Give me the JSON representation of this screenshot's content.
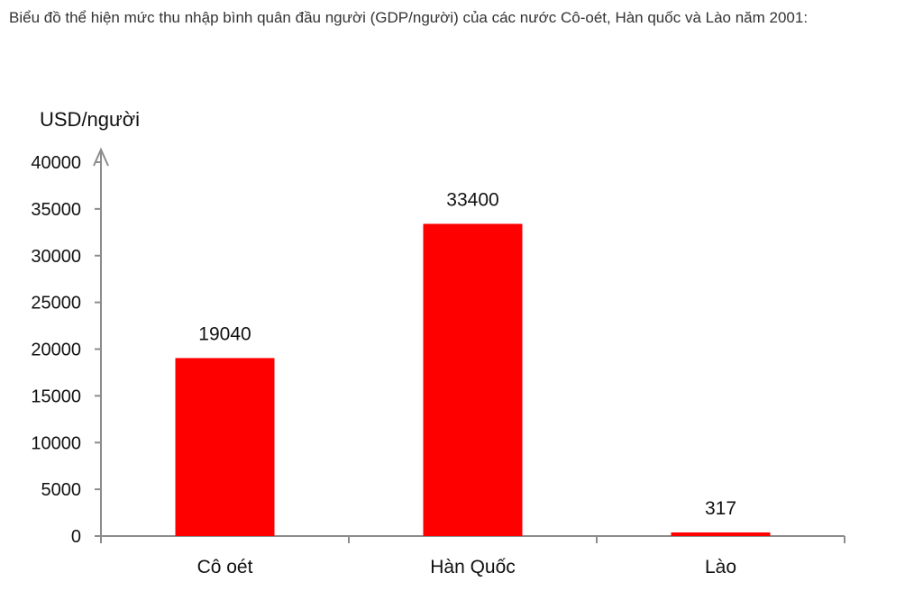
{
  "question": {
    "text": "Biểu đồ thể hiện mức thu nhập bình quân đầu người (GDP/người) của các nước Cô-oét, Hàn quốc và Lào năm 2001:"
  },
  "colors": {
    "bar": "#ff0000",
    "axis": "#8c8c8c",
    "text": "#111111"
  },
  "chart_data": {
    "type": "bar",
    "title": "",
    "xlabel": "",
    "ylabel": "USD/người",
    "categories": [
      "Cô oét",
      "Hàn Quốc",
      "Lào"
    ],
    "values": [
      19040,
      33400,
      317
    ],
    "data_labels": [
      "19040",
      "33400",
      "317"
    ],
    "ylim": [
      0,
      40000
    ],
    "yticks": [
      0,
      5000,
      10000,
      15000,
      20000,
      25000,
      30000,
      35000,
      40000
    ],
    "grid": false,
    "legend": "none"
  }
}
